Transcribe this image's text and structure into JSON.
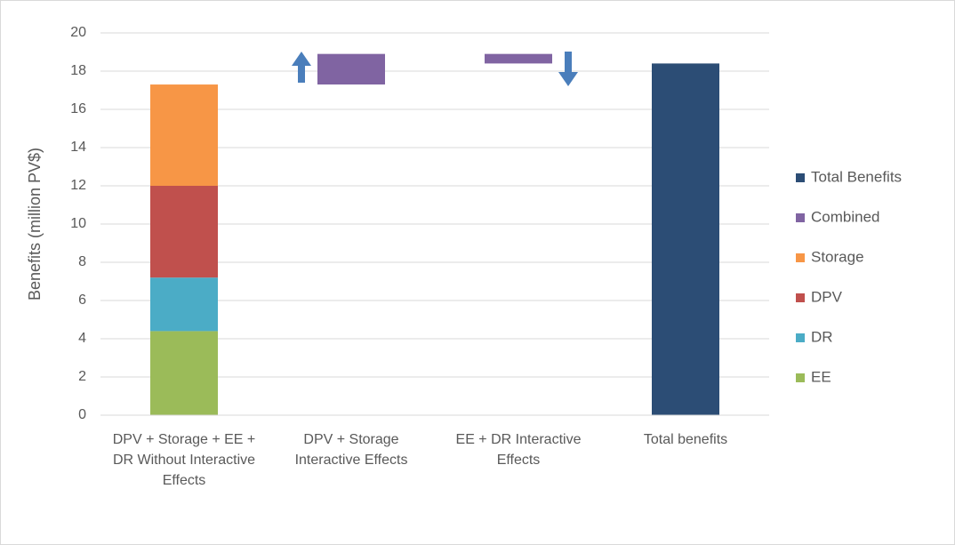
{
  "chart_data": {
    "type": "waterfall",
    "y_label": "Benefits (million PV$)",
    "categories": [
      "DPV + Storage + EE + DR Without Interactive Effects",
      "DPV + Storage Interactive Effects",
      "EE + DR Interactive Effects",
      "Total benefits"
    ],
    "series": [
      {
        "name": "EE",
        "color": "#9bbb59",
        "values": [
          4.4,
          null,
          null,
          null
        ]
      },
      {
        "name": "DR",
        "color": "#4bacc6",
        "values": [
          2.8,
          null,
          null,
          null
        ]
      },
      {
        "name": "DPV",
        "color": "#c0504d",
        "values": [
          4.8,
          null,
          null,
          null
        ]
      },
      {
        "name": "Storage",
        "color": "#f79646",
        "values": [
          5.3,
          null,
          null,
          null
        ]
      },
      {
        "name": "Combined",
        "color": "#8064a2",
        "values": [
          null,
          1.6,
          -0.5,
          null
        ]
      },
      {
        "name": "Total Benefits",
        "color": "#2c4d75",
        "values": [
          null,
          null,
          null,
          18.4
        ],
        "total": true
      }
    ],
    "ylim": [
      0,
      20
    ],
    "yticks": [
      0,
      2,
      4,
      6,
      8,
      10,
      12,
      14,
      16,
      18,
      20
    ],
    "grid": true
  }
}
